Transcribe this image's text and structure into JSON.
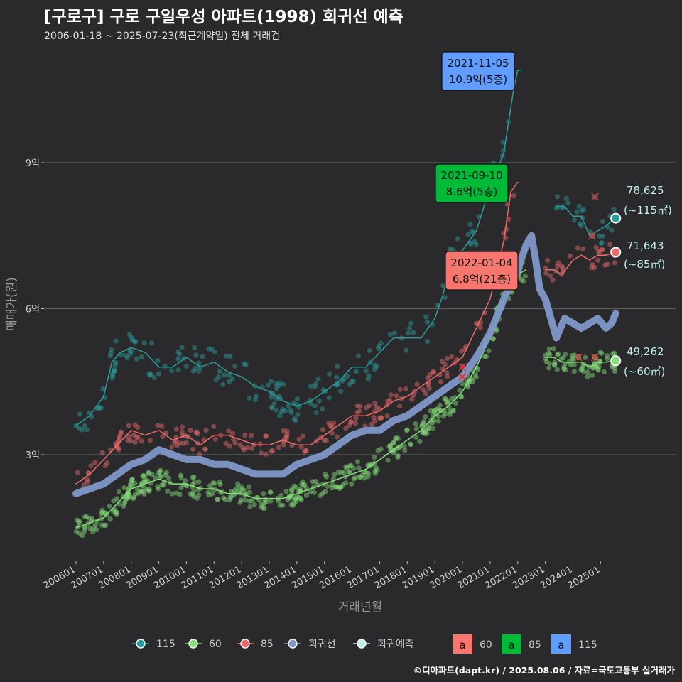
{
  "title": "[구로구] 구로 구일우성 아파트(1998) 회귀선 예측",
  "subtitle": "2006-01-18 ~ 2025-07-23(최근계약일) 전체 거래건",
  "footer": "©디아파트(dapt.kr) / 2025.08.06 / 자료=국토교통부 실거래가",
  "colors": {
    "s115": "#2a9d9d",
    "s60": "#86e07a",
    "s85": "#ee6a6a",
    "regression": "#7f98c8",
    "forecast": "#bff0ec",
    "box60": "#f8766d",
    "box85": "#00ba38",
    "box115": "#619cff",
    "grid": "#5c5c5c",
    "background": "#2a2a2c"
  },
  "chart_data": {
    "type": "line",
    "xlabel": "거래년월",
    "ylabel": "매매가(원)",
    "x_range": [
      "2006-01",
      "2025-12"
    ],
    "y_range_eok": [
      1.0,
      11.0
    ],
    "yticks": [
      {
        "value": 3,
        "label": "3억"
      },
      {
        "value": 6,
        "label": "6억"
      },
      {
        "value": 9,
        "label": "9억"
      }
    ],
    "xticks": [
      "200601",
      "200701",
      "200801",
      "200901",
      "201001",
      "201101",
      "201201",
      "201301",
      "201401",
      "201501",
      "201601",
      "201701",
      "201801",
      "201901",
      "202001",
      "202101",
      "202201",
      "202301",
      "202401",
      "202501"
    ],
    "series": [
      {
        "name": "115",
        "key": "s115",
        "unit": "억",
        "points": [
          [
            2006.0,
            3.6
          ],
          [
            2006.5,
            3.8
          ],
          [
            2007.0,
            4.2
          ],
          [
            2007.3,
            4.9
          ],
          [
            2007.6,
            5.1
          ],
          [
            2008.0,
            5.2
          ],
          [
            2008.5,
            5.1
          ],
          [
            2009.0,
            4.8
          ],
          [
            2009.5,
            4.8
          ],
          [
            2010.0,
            5.0
          ],
          [
            2010.5,
            4.8
          ],
          [
            2011.0,
            4.9
          ],
          [
            2011.5,
            4.7
          ],
          [
            2012.0,
            4.6
          ],
          [
            2012.5,
            4.4
          ],
          [
            2013.0,
            4.3
          ],
          [
            2013.5,
            4.1
          ],
          [
            2014.0,
            4.0
          ],
          [
            2014.5,
            4.1
          ],
          [
            2015.0,
            4.3
          ],
          [
            2015.5,
            4.5
          ],
          [
            2016.0,
            4.8
          ],
          [
            2016.5,
            4.8
          ],
          [
            2017.0,
            5.1
          ],
          [
            2017.5,
            5.4
          ],
          [
            2018.0,
            5.4
          ],
          [
            2018.5,
            5.4
          ],
          [
            2019.0,
            5.8
          ],
          [
            2019.3,
            6.3
          ],
          [
            2019.6,
            7.0
          ],
          [
            2020.0,
            7.2
          ],
          [
            2020.5,
            7.6
          ],
          [
            2021.0,
            8.5
          ],
          [
            2021.5,
            9.2
          ],
          [
            2021.85,
            10.5
          ],
          [
            2022.0,
            10.9
          ],
          [
            2022.1,
            10.9
          ]
        ]
      },
      {
        "name": "115-recent",
        "key": "s115",
        "unit": "억",
        "points": [
          [
            2023.4,
            8.1
          ],
          [
            2023.7,
            8.1
          ],
          [
            2024.0,
            7.9
          ],
          [
            2024.3,
            7.9
          ],
          [
            2024.6,
            7.5
          ],
          [
            2024.9,
            7.6
          ],
          [
            2025.2,
            7.7
          ],
          [
            2025.4,
            7.8
          ],
          [
            2025.55,
            7.86
          ]
        ]
      },
      {
        "name": "85",
        "key": "s85",
        "unit": "억",
        "points": [
          [
            2006.0,
            2.4
          ],
          [
            2006.5,
            2.6
          ],
          [
            2007.0,
            2.9
          ],
          [
            2007.5,
            3.2
          ],
          [
            2008.0,
            3.5
          ],
          [
            2008.5,
            3.4
          ],
          [
            2009.0,
            3.5
          ],
          [
            2009.5,
            3.3
          ],
          [
            2010.0,
            3.4
          ],
          [
            2010.5,
            3.2
          ],
          [
            2011.0,
            3.4
          ],
          [
            2011.5,
            3.4
          ],
          [
            2012.0,
            3.3
          ],
          [
            2012.5,
            3.2
          ],
          [
            2013.0,
            3.2
          ],
          [
            2013.5,
            3.3
          ],
          [
            2014.0,
            3.2
          ],
          [
            2014.5,
            3.2
          ],
          [
            2015.0,
            3.4
          ],
          [
            2015.5,
            3.6
          ],
          [
            2016.0,
            3.8
          ],
          [
            2016.5,
            3.8
          ],
          [
            2017.0,
            3.9
          ],
          [
            2017.5,
            4.1
          ],
          [
            2018.0,
            4.2
          ],
          [
            2018.5,
            4.4
          ],
          [
            2019.0,
            4.6
          ],
          [
            2019.5,
            4.8
          ],
          [
            2020.0,
            5.0
          ],
          [
            2020.5,
            5.6
          ],
          [
            2021.0,
            6.2
          ],
          [
            2021.5,
            7.4
          ],
          [
            2021.75,
            8.4
          ],
          [
            2022.0,
            8.6
          ]
        ]
      },
      {
        "name": "85-recent",
        "key": "s85",
        "unit": "억",
        "points": [
          [
            2023.0,
            6.8
          ],
          [
            2023.3,
            6.8
          ],
          [
            2023.6,
            6.7
          ],
          [
            2024.0,
            7.0
          ],
          [
            2024.3,
            7.1
          ],
          [
            2024.6,
            7.0
          ],
          [
            2024.9,
            7.1
          ],
          [
            2025.2,
            7.1
          ],
          [
            2025.55,
            7.16
          ]
        ]
      },
      {
        "name": "60",
        "key": "s60",
        "unit": "억",
        "points": [
          [
            2006.0,
            1.5
          ],
          [
            2006.5,
            1.6
          ],
          [
            2007.0,
            1.7
          ],
          [
            2007.5,
            2.0
          ],
          [
            2008.0,
            2.3
          ],
          [
            2008.5,
            2.4
          ],
          [
            2009.0,
            2.5
          ],
          [
            2009.5,
            2.4
          ],
          [
            2010.0,
            2.4
          ],
          [
            2010.5,
            2.3
          ],
          [
            2011.0,
            2.3
          ],
          [
            2011.5,
            2.2
          ],
          [
            2012.0,
            2.2
          ],
          [
            2012.5,
            2.1
          ],
          [
            2013.0,
            2.1
          ],
          [
            2013.5,
            2.1
          ],
          [
            2014.0,
            2.2
          ],
          [
            2014.5,
            2.3
          ],
          [
            2015.0,
            2.4
          ],
          [
            2015.5,
            2.5
          ],
          [
            2016.0,
            2.6
          ],
          [
            2016.5,
            2.7
          ],
          [
            2017.0,
            2.9
          ],
          [
            2017.5,
            3.1
          ],
          [
            2018.0,
            3.3
          ],
          [
            2018.5,
            3.5
          ],
          [
            2019.0,
            3.8
          ],
          [
            2019.5,
            4.0
          ],
          [
            2020.0,
            4.3
          ],
          [
            2020.5,
            4.8
          ],
          [
            2021.0,
            5.4
          ],
          [
            2021.5,
            6.2
          ],
          [
            2022.0,
            6.7
          ],
          [
            2022.3,
            6.8
          ]
        ]
      },
      {
        "name": "60-recent",
        "key": "s60",
        "unit": "억",
        "points": [
          [
            2023.0,
            5.0
          ],
          [
            2023.3,
            5.0
          ],
          [
            2023.6,
            4.9
          ],
          [
            2024.0,
            4.9
          ],
          [
            2024.3,
            4.9
          ],
          [
            2024.6,
            4.8
          ],
          [
            2024.9,
            4.9
          ],
          [
            2025.2,
            4.9
          ],
          [
            2025.55,
            4.93
          ]
        ]
      },
      {
        "name": "회귀선",
        "key": "regression",
        "unit": "억",
        "points": [
          [
            2006.0,
            2.2
          ],
          [
            2006.5,
            2.3
          ],
          [
            2007.0,
            2.4
          ],
          [
            2007.5,
            2.6
          ],
          [
            2008.0,
            2.8
          ],
          [
            2008.5,
            2.9
          ],
          [
            2009.0,
            3.1
          ],
          [
            2009.5,
            3.0
          ],
          [
            2010.0,
            2.9
          ],
          [
            2010.5,
            2.9
          ],
          [
            2011.0,
            2.8
          ],
          [
            2011.5,
            2.8
          ],
          [
            2012.0,
            2.7
          ],
          [
            2012.5,
            2.6
          ],
          [
            2013.0,
            2.6
          ],
          [
            2013.5,
            2.6
          ],
          [
            2014.0,
            2.8
          ],
          [
            2014.5,
            2.9
          ],
          [
            2015.0,
            3.0
          ],
          [
            2015.5,
            3.2
          ],
          [
            2016.0,
            3.4
          ],
          [
            2016.5,
            3.5
          ],
          [
            2017.0,
            3.5
          ],
          [
            2017.5,
            3.7
          ],
          [
            2018.0,
            3.8
          ],
          [
            2018.5,
            4.0
          ],
          [
            2019.0,
            4.2
          ],
          [
            2019.5,
            4.4
          ],
          [
            2020.0,
            4.6
          ],
          [
            2020.5,
            5.0
          ],
          [
            2021.0,
            5.5
          ],
          [
            2021.5,
            6.2
          ],
          [
            2022.0,
            6.8
          ],
          [
            2022.3,
            7.3
          ],
          [
            2022.5,
            7.5
          ],
          [
            2022.65,
            7.0
          ],
          [
            2022.8,
            6.4
          ],
          [
            2023.0,
            6.2
          ],
          [
            2023.2,
            5.8
          ],
          [
            2023.4,
            5.4
          ],
          [
            2023.7,
            5.8
          ],
          [
            2024.0,
            5.7
          ],
          [
            2024.3,
            5.6
          ],
          [
            2024.6,
            5.7
          ],
          [
            2024.9,
            5.8
          ],
          [
            2025.2,
            5.6
          ],
          [
            2025.4,
            5.7
          ],
          [
            2025.55,
            5.9
          ]
        ]
      }
    ],
    "scatter_note": "individual transactions drawn as translucent dots around each series line",
    "forecast_points": [
      {
        "series": "115",
        "key": "s115",
        "x": 2025.55,
        "y": 7.86,
        "value": "78,625",
        "area": "(~115㎡)"
      },
      {
        "series": "85",
        "key": "s85",
        "x": 2025.55,
        "y": 7.16,
        "value": "71,643",
        "area": "(~85㎡)"
      },
      {
        "series": "60",
        "key": "s60",
        "x": 2025.55,
        "y": 4.93,
        "value": "49,262",
        "area": "(~60㎡)"
      }
    ],
    "cancelled_marks": [
      {
        "key": "s115",
        "x": 2024.8,
        "y": 8.3
      },
      {
        "key": "s115",
        "x": 2024.7,
        "y": 7.5
      },
      {
        "key": "s85",
        "x": 2020.0,
        "y": 4.8
      },
      {
        "key": "s85",
        "x": 2020.0,
        "y": 4.6
      },
      {
        "key": "s60",
        "x": 2024.2,
        "y": 5.0
      },
      {
        "key": "s60",
        "x": 2024.8,
        "y": 5.0
      }
    ],
    "peak_labels": [
      {
        "date": "2021-11-05",
        "price": "10.9억(5층)",
        "box": "box115",
        "x": 2021.85,
        "y": 10.9
      },
      {
        "date": "2021-09-10",
        "price": "8.6억(5층)",
        "box": "box85",
        "x": 2021.7,
        "y": 8.6
      },
      {
        "date": "2022-01-04",
        "price": "6.8억(21층)",
        "box": "box60",
        "x": 2022.0,
        "y": 6.8
      }
    ],
    "legend_lines": [
      {
        "label": "115",
        "key": "s115"
      },
      {
        "label": "60",
        "key": "s60"
      },
      {
        "label": "85",
        "key": "s85"
      },
      {
        "label": "회귀선",
        "key": "regression"
      },
      {
        "label": "회귀예측",
        "key": "forecast"
      }
    ],
    "legend_boxes": [
      {
        "label": "60",
        "key": "box60",
        "glyph": "a"
      },
      {
        "label": "85",
        "key": "box85",
        "glyph": "a"
      },
      {
        "label": "115",
        "key": "box115",
        "glyph": "a"
      }
    ]
  }
}
